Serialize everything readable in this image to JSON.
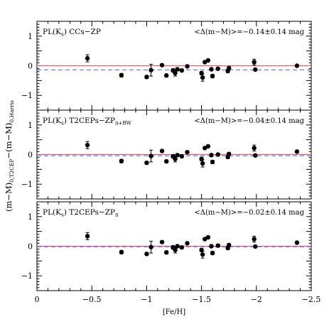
{
  "chart_data": {
    "type": "scatter",
    "xlabel": "[Fe/H]",
    "ylabel": "(m−M)",
    "ylabel_sub": "0,T2CEP",
    "ylabel_mid": "−(m−M)",
    "ylabel_sub2": "0,Harris",
    "xlim": [
      0,
      -2.5
    ],
    "ylim": [
      -1.5,
      1.5
    ],
    "x_ticks": [
      0,
      -0.5,
      -1,
      -1.5,
      -2,
      -2.5
    ],
    "x_tick_labels": [
      "0",
      "−0.5",
      "−1",
      "−1.5",
      "−2",
      "−2.5"
    ],
    "y_ticks": [
      -1,
      0,
      1
    ],
    "y_tick_labels": [
      "−1",
      "0",
      "1"
    ],
    "reference_line_color": "#e06060",
    "mean_line_color": "#6a6aff",
    "panels": [
      {
        "label_main": "PL(K",
        "label_sub": "s",
        "label_rest": ") CCs−ZP",
        "label_zp_sub": "",
        "annotation": "<Δ(m−M)>=−0.14±0.14 mag",
        "mean_offset": -0.14,
        "points": [
          {
            "x": -0.46,
            "y": 0.25,
            "err": 0.12
          },
          {
            "x": -0.77,
            "y": -0.32,
            "err": 0.06
          },
          {
            "x": -1.0,
            "y": -0.38,
            "err": 0.05
          },
          {
            "x": -1.04,
            "y": -0.15,
            "err": 0.2
          },
          {
            "x": -1.14,
            "y": 0.02,
            "err": 0.04
          },
          {
            "x": -1.18,
            "y": -0.33,
            "err": 0.05
          },
          {
            "x": -1.24,
            "y": -0.16,
            "err": 0.06
          },
          {
            "x": -1.26,
            "y": -0.25,
            "err": 0.1
          },
          {
            "x": -1.28,
            "y": -0.12,
            "err": 0.05
          },
          {
            "x": -1.32,
            "y": -0.16,
            "err": 0.05
          },
          {
            "x": -1.37,
            "y": -0.02,
            "err": 0.04
          },
          {
            "x": -1.5,
            "y": -0.25,
            "err": 0.06
          },
          {
            "x": -1.51,
            "y": -0.4,
            "err": 0.12
          },
          {
            "x": -1.53,
            "y": 0.12,
            "err": 0.04
          },
          {
            "x": -1.56,
            "y": 0.18,
            "err": 0.04
          },
          {
            "x": -1.59,
            "y": -0.12,
            "err": 0.05
          },
          {
            "x": -1.6,
            "y": -0.35,
            "err": 0.06
          },
          {
            "x": -1.65,
            "y": -0.1,
            "err": 0.05
          },
          {
            "x": -1.74,
            "y": -0.18,
            "err": 0.06
          },
          {
            "x": -1.75,
            "y": -0.08,
            "err": 0.05
          },
          {
            "x": -1.98,
            "y": 0.12,
            "err": 0.1
          },
          {
            "x": -1.99,
            "y": -0.13,
            "err": 0.04
          },
          {
            "x": -2.37,
            "y": 0.0,
            "err": 0.04
          }
        ]
      },
      {
        "label_main": "PL(K",
        "label_sub": "s",
        "label_rest": ") T2CEPs−ZP",
        "label_zp_sub": "π+BW",
        "annotation": "<Δ(m−M)>=−0.04±0.14 mag",
        "mean_offset": -0.04,
        "points": [
          {
            "x": -0.46,
            "y": 0.32,
            "err": 0.12
          },
          {
            "x": -0.77,
            "y": -0.22,
            "err": 0.06
          },
          {
            "x": -1.0,
            "y": -0.28,
            "err": 0.05
          },
          {
            "x": -1.04,
            "y": -0.05,
            "err": 0.2
          },
          {
            "x": -1.14,
            "y": 0.12,
            "err": 0.04
          },
          {
            "x": -1.18,
            "y": -0.23,
            "err": 0.05
          },
          {
            "x": -1.24,
            "y": -0.06,
            "err": 0.06
          },
          {
            "x": -1.26,
            "y": -0.15,
            "err": 0.1
          },
          {
            "x": -1.28,
            "y": -0.02,
            "err": 0.05
          },
          {
            "x": -1.32,
            "y": -0.06,
            "err": 0.05
          },
          {
            "x": -1.37,
            "y": 0.08,
            "err": 0.04
          },
          {
            "x": -1.5,
            "y": -0.15,
            "err": 0.06
          },
          {
            "x": -1.51,
            "y": -0.3,
            "err": 0.12
          },
          {
            "x": -1.53,
            "y": 0.22,
            "err": 0.04
          },
          {
            "x": -1.56,
            "y": 0.28,
            "err": 0.04
          },
          {
            "x": -1.59,
            "y": -0.02,
            "err": 0.05
          },
          {
            "x": -1.6,
            "y": -0.25,
            "err": 0.06
          },
          {
            "x": -1.65,
            "y": 0.0,
            "err": 0.05
          },
          {
            "x": -1.74,
            "y": -0.08,
            "err": 0.06
          },
          {
            "x": -1.75,
            "y": 0.02,
            "err": 0.05
          },
          {
            "x": -1.98,
            "y": 0.22,
            "err": 0.1
          },
          {
            "x": -1.99,
            "y": -0.03,
            "err": 0.04
          },
          {
            "x": -2.37,
            "y": 0.1,
            "err": 0.04
          }
        ]
      },
      {
        "label_main": "PL(K",
        "label_sub": "s",
        "label_rest": ") T2CEPs−ZP",
        "label_zp_sub": "π",
        "annotation": "<Δ(m−M)>=−0.02±0.14 mag",
        "mean_offset": -0.02,
        "points": [
          {
            "x": -0.46,
            "y": 0.34,
            "err": 0.12
          },
          {
            "x": -0.77,
            "y": -0.2,
            "err": 0.06
          },
          {
            "x": -1.0,
            "y": -0.26,
            "err": 0.05
          },
          {
            "x": -1.04,
            "y": -0.03,
            "err": 0.2
          },
          {
            "x": -1.14,
            "y": 0.14,
            "err": 0.04
          },
          {
            "x": -1.18,
            "y": -0.21,
            "err": 0.05
          },
          {
            "x": -1.24,
            "y": -0.04,
            "err": 0.06
          },
          {
            "x": -1.26,
            "y": -0.13,
            "err": 0.1
          },
          {
            "x": -1.28,
            "y": 0.0,
            "err": 0.05
          },
          {
            "x": -1.32,
            "y": -0.04,
            "err": 0.05
          },
          {
            "x": -1.37,
            "y": 0.1,
            "err": 0.04
          },
          {
            "x": -1.5,
            "y": -0.13,
            "err": 0.06
          },
          {
            "x": -1.51,
            "y": -0.28,
            "err": 0.12
          },
          {
            "x": -1.53,
            "y": 0.24,
            "err": 0.04
          },
          {
            "x": -1.56,
            "y": 0.3,
            "err": 0.04
          },
          {
            "x": -1.59,
            "y": 0.0,
            "err": 0.05
          },
          {
            "x": -1.6,
            "y": -0.23,
            "err": 0.06
          },
          {
            "x": -1.65,
            "y": 0.02,
            "err": 0.05
          },
          {
            "x": -1.74,
            "y": -0.06,
            "err": 0.06
          },
          {
            "x": -1.75,
            "y": 0.04,
            "err": 0.05
          },
          {
            "x": -1.98,
            "y": 0.24,
            "err": 0.1
          },
          {
            "x": -1.99,
            "y": -0.01,
            "err": 0.04
          },
          {
            "x": -2.37,
            "y": 0.12,
            "err": 0.04
          }
        ]
      }
    ]
  }
}
